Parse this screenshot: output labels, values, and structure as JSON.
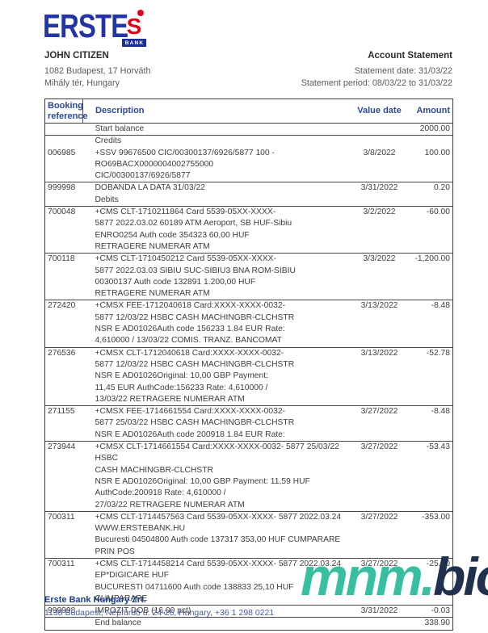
{
  "logo": {
    "erste": "ERSTE",
    "s": "S",
    "bank": "BANK",
    "blue": "#2334a4",
    "red": "#e2001a"
  },
  "account_holder": {
    "name": "JOHN CITIZEN",
    "address_line1": "1082 Budapest, 17 Horváth",
    "address_line2": "Mihály tér, Hungary"
  },
  "statement": {
    "title": "Account Statement",
    "date_line": "Statement date: 31/03/22",
    "period_line": "Statement period: 08/03/22 to 31/03/22"
  },
  "table": {
    "headers": {
      "ref_line1": "Booking",
      "ref_line2": "reference",
      "description": "Description",
      "value_date": "Value date",
      "amount": "Amount"
    },
    "rows": [
      {
        "type": "balance",
        "ref": "",
        "lines": [
          "Start balance"
        ],
        "date": "",
        "amount": "2000.00",
        "border": true
      },
      {
        "type": "section",
        "ref": "",
        "lines": [
          "Credits"
        ],
        "date": "",
        "amount": "",
        "border": false
      },
      {
        "type": "txn",
        "ref": "006985",
        "lines": [
          "+SSV 99676500 CIC/00300137/6926/5877 100 -",
          "RO69BACX0000004002755000",
          "CIC/00300137/6926/5877"
        ],
        "date": "3/8/2022",
        "amount": "100.00",
        "border": true
      },
      {
        "type": "txn",
        "ref": "999998",
        "lines": [
          "DOBANDA LA DATA 31/03/22"
        ],
        "date": "3/31/2022",
        "amount": "0.20",
        "border": false
      },
      {
        "type": "section",
        "ref": "",
        "lines": [
          "Debits"
        ],
        "date": "",
        "amount": "",
        "border": true
      },
      {
        "type": "txn",
        "ref": "700048",
        "lines": [
          "+CMS CLT-1710211864 Card 5539-05XX-XXXX-",
          "5877 2022.03.02 60189 ATM Aeroport, SB HUF-Sibiu",
          "ENRO0254   Auth code 354323 60,00 HUF",
          "RETRAGERE NUMERAR ATM"
        ],
        "date": "3/2/2022",
        "amount": "-60.00",
        "border": true
      },
      {
        "type": "txn",
        "ref": "700118",
        "lines": [
          "+CMS CLT-1710450212 Card 5539-05XX-XXXX-",
          "5877 2022.03.03 SIBIU SUC-SIBIU3 BNA ROM-SIBIU",
          "00300137 Auth code 132891 1.200,00 HUF",
          "RETRAGERE NUMERAR ATM"
        ],
        "date": "3/3/2022",
        "amount": "-1,200.00",
        "border": true
      },
      {
        "type": "txn",
        "ref": "272420",
        "lines": [
          "+CMSX FEE-1712040618 Card:XXXX-XXXX-0032-",
          "5877 12/03/22 HSBC CASH MACHINGBR-CLCHSTR",
          "NSR E AD01026Auth code 156233 1.84 EUR Rate:",
          "4,610000 / 13/03/22 COMIS. TRANZ. BANCOMAT"
        ],
        "date": "3/13/2022",
        "amount": "-8.48",
        "border": true
      },
      {
        "type": "txn",
        "ref": "276536",
        "lines": [
          "+CMSX CLT-1712040618 Card:XXXX-XXXX-0032-",
          "5877 12/03/22 HSBC CASH MACHINGBR-CLCHSTR",
          "NSR E AD01026Original: 10,00 GBP Payment:",
          "11,45 EUR AuthCode:156233 Rate: 4,610000 /",
          "13/03/22 RETRAGERE NUMERAR ATM"
        ],
        "date": "3/13/2022",
        "amount": "-52.78",
        "border": true
      },
      {
        "type": "txn",
        "ref": "271155",
        "lines": [
          "+CMSX FEE-1714661554 Card:XXXX-XXXX-0032-",
          "5877 25/03/22 HSBC CASH MACHINGBR-CLCHSTR",
          "NSR E AD01026Auth code 200918 1.84 EUR Rate:"
        ],
        "date": "3/27/2022",
        "amount": "-8.48",
        "border": true
      },
      {
        "type": "txn",
        "ref": "273944",
        "lines": [
          "+CMSX CLT-1714661554 Card:XXXX-XXXX-0032- 5877 25/03/22 HSBC",
          "CASH MACHINGBR-CLCHSTR",
          "NSR E AD01026Original: 10,00 GBP Payment: 11,59 HUF",
          "AuthCode:200918 Rate: 4,610000 /",
          "27/03/22 RETRAGERE NUMERAR ATM"
        ],
        "date": "3/27/2022",
        "amount": "-53.43",
        "border": true
      },
      {
        "type": "txn",
        "ref": "700311",
        "lines": [
          "+CMS CLT-1714457563 Card 5539-05XX-XXXX- 5877 2022.03.24",
          "WWW.ERSTEBANK.HU",
          "Bucuresti 04504800 Auth code 137317 353,00 HUF CUMPARARE PRIN POS"
        ],
        "date": "3/27/2022",
        "amount": "-353.00",
        "border": true
      },
      {
        "type": "txn",
        "ref": "700311",
        "lines": [
          "+CMS CLT-1714458214 Card 5539-05XX-XXXX- 5877 2022.03.24",
          "EP*DIGICARE HUF",
          "BUCURESTI 04711600 Auth code 138833 25,10 HUF CUMPARARE"
        ],
        "date": "3/27/2022",
        "amount": "-25.10",
        "border": true
      },
      {
        "type": "txn",
        "ref": "999998",
        "lines": [
          "IMPOZIT DOB (16,00 pct)"
        ],
        "date": "3/31/2022",
        "amount": "-0.03",
        "border": true
      },
      {
        "type": "balance",
        "ref": "",
        "lines": [
          "End balance"
        ],
        "date": "",
        "amount": "338.90",
        "border": false
      }
    ]
  },
  "footer": {
    "bank_name": "Erste Bank Hungary Zrt.",
    "address": "1138 Budapest, Népfürdő u. 24-26, Hungary, +36 1 298 0221"
  },
  "watermark": {
    "part1": "mnm.",
    "part2": "bio",
    "teal": "#38bfa1",
    "navy": "#20314f"
  }
}
